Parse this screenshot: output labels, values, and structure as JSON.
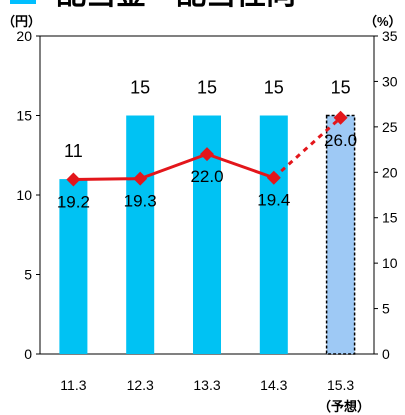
{
  "header": {
    "title_partial": "配当金・配当性向",
    "accent_color": "#00bfff"
  },
  "chart_data": {
    "type": "bar",
    "categories": [
      "11.3",
      "12.3",
      "13.3",
      "14.3",
      "15.3"
    ],
    "category_note": "（予想）",
    "series": [
      {
        "kind": "bar",
        "axis": "left",
        "values": [
          11,
          15,
          15,
          15,
          15
        ],
        "value_labels": [
          "11",
          "15",
          "15",
          "15",
          "15"
        ],
        "forecast_index": 4,
        "color": "#00c2f3",
        "forecast_color": "#9ec9f5"
      },
      {
        "kind": "line",
        "axis": "right",
        "values": [
          19.2,
          19.3,
          22.0,
          19.4,
          26.0
        ],
        "value_labels": [
          "19.2",
          "19.3",
          "22.0",
          "19.4",
          "26.0"
        ],
        "forecast_index": 4,
        "color": "#e3161b"
      }
    ],
    "left_axis": {
      "unit": "（円）",
      "ylim": [
        0,
        20
      ],
      "ticks": [
        0,
        5,
        10,
        15,
        20
      ]
    },
    "right_axis": {
      "unit": "（%）",
      "ylim": [
        0,
        35
      ],
      "ticks": [
        0,
        5,
        10,
        15,
        20,
        25,
        30,
        35
      ]
    },
    "grid": false,
    "legend": "none"
  }
}
